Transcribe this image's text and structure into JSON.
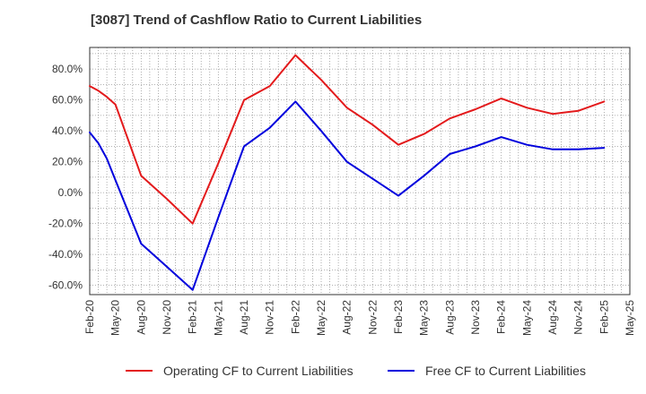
{
  "chart_data": {
    "type": "line",
    "title": "[3087]  Trend of Cashflow Ratio to Current Liabilities",
    "xlabel": "",
    "ylabel": "",
    "ylim": [
      -66,
      94
    ],
    "yticks": [
      80,
      60,
      40,
      20,
      0,
      -20,
      -40,
      -60
    ],
    "ytick_labels": [
      "80.0%",
      "60.0%",
      "40.0%",
      "20.0%",
      "0.0%",
      "-20.0%",
      "-40.0%",
      "-60.0%"
    ],
    "x_tick_labels": [
      "Feb-20",
      "May-20",
      "Aug-20",
      "Nov-20",
      "Feb-21",
      "May-21",
      "Aug-21",
      "Nov-21",
      "Feb-22",
      "May-22",
      "Aug-22",
      "Nov-22",
      "Feb-23",
      "May-23",
      "Aug-23",
      "Nov-23",
      "Feb-24",
      "May-24",
      "Aug-24",
      "Nov-24",
      "Feb-25",
      "May-25"
    ],
    "grid": true,
    "legend_position": "bottom",
    "series": [
      {
        "name": "Operating CF to Current Liabilities",
        "color": "#e31a1c",
        "points": [
          [
            "Feb-20",
            69
          ],
          [
            "Mar-20",
            66
          ],
          [
            "Apr-20",
            62
          ],
          [
            "May-20",
            57
          ],
          [
            "Aug-20",
            11
          ],
          [
            "Nov-20",
            -4
          ],
          [
            "Feb-21",
            -20
          ],
          [
            "May-21",
            19
          ],
          [
            "Aug-21",
            60
          ],
          [
            "Nov-21",
            69
          ],
          [
            "Feb-22",
            89
          ],
          [
            "May-22",
            73
          ],
          [
            "Aug-22",
            55
          ],
          [
            "Nov-22",
            44
          ],
          [
            "Feb-23",
            31
          ],
          [
            "May-23",
            38
          ],
          [
            "Aug-23",
            48
          ],
          [
            "Nov-23",
            54
          ],
          [
            "Feb-24",
            61
          ],
          [
            "May-24",
            55
          ],
          [
            "Aug-24",
            51
          ],
          [
            "Nov-24",
            53
          ],
          [
            "Feb-25",
            59
          ]
        ]
      },
      {
        "name": "Free CF to Current Liabilities",
        "color": "#0000dd",
        "points": [
          [
            "Feb-20",
            39
          ],
          [
            "Mar-20",
            32
          ],
          [
            "Apr-20",
            22
          ],
          [
            "May-20",
            8
          ],
          [
            "Aug-20",
            -33
          ],
          [
            "Nov-20",
            -48
          ],
          [
            "Feb-21",
            -63
          ],
          [
            "May-21",
            -16
          ],
          [
            "Aug-21",
            30
          ],
          [
            "Nov-21",
            42
          ],
          [
            "Feb-22",
            59
          ],
          [
            "May-22",
            40
          ],
          [
            "Aug-22",
            20
          ],
          [
            "Nov-22",
            9
          ],
          [
            "Feb-23",
            -2
          ],
          [
            "May-23",
            11
          ],
          [
            "Aug-23",
            25
          ],
          [
            "Nov-23",
            30
          ],
          [
            "Feb-24",
            36
          ],
          [
            "May-24",
            31
          ],
          [
            "Aug-24",
            28
          ],
          [
            "Nov-24",
            28
          ],
          [
            "Feb-25",
            29
          ]
        ]
      }
    ]
  }
}
